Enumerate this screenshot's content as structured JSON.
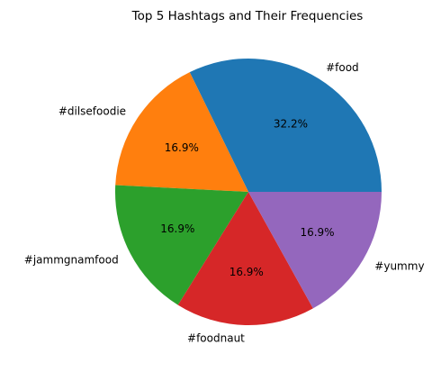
{
  "chart_data": {
    "type": "pie",
    "title": "Top 5 Hashtags and Their Frequencies",
    "categories": [
      "#food",
      "#dilsefoodie",
      "#jammgnamfood",
      "#foodnaut",
      "#yummy"
    ],
    "values": [
      32.2,
      16.9,
      16.9,
      16.9,
      16.9
    ],
    "percent_labels": [
      "32.2%",
      "16.9%",
      "16.9%",
      "16.9%",
      "16.9%"
    ],
    "colors": [
      "#1f77b4",
      "#ff7f0e",
      "#2ca02c",
      "#d62728",
      "#9467bd"
    ],
    "start_angle_deg": 0,
    "direction": "counterclockwise",
    "legend": "none"
  }
}
